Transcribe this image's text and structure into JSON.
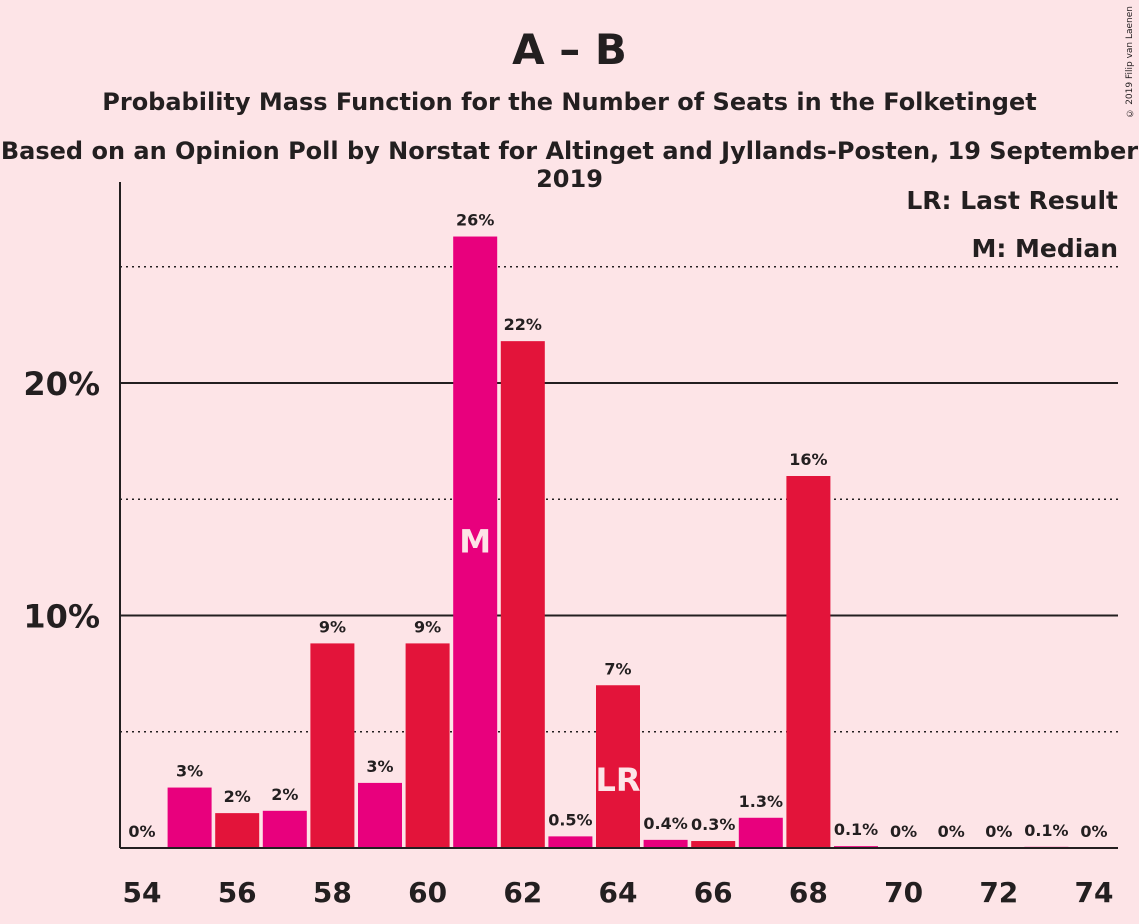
{
  "chart_data": {
    "type": "bar",
    "title": "A – B",
    "subtitle": "Probability Mass Function for the Number of Seats in the Folketinget",
    "subtitle2": "Based on an Opinion Poll by Norstat for Altinget and Jyllands-Posten, 19 September 2019",
    "copyright": "© 2019 Filip van Laenen",
    "legend": [
      "LR: Last Result",
      "M: Median"
    ],
    "legend_position": "top-right",
    "xlim": [
      54,
      74
    ],
    "ylim": [
      0,
      28
    ],
    "x_ticks": [
      54,
      56,
      58,
      60,
      62,
      64,
      66,
      68,
      70,
      72,
      74
    ],
    "y_ticks": [
      {
        "value": 10,
        "label": "10%"
      },
      {
        "value": 20,
        "label": "20%"
      }
    ],
    "dotted_gridlines": [
      5,
      15,
      25
    ],
    "colors": [
      "#e8007d",
      "#e3143a"
    ],
    "bars": [
      {
        "seats": 54,
        "value": 0,
        "label": "0%"
      },
      {
        "seats": 55,
        "value": 2.6,
        "label": "3%"
      },
      {
        "seats": 56,
        "value": 1.5,
        "label": "2%"
      },
      {
        "seats": 57,
        "value": 1.6,
        "label": "2%"
      },
      {
        "seats": 58,
        "value": 8.8,
        "label": "9%"
      },
      {
        "seats": 59,
        "value": 2.8,
        "label": "3%"
      },
      {
        "seats": 60,
        "value": 8.8,
        "label": "9%"
      },
      {
        "seats": 61,
        "value": 26.3,
        "label": "26%",
        "marker": "M"
      },
      {
        "seats": 62,
        "value": 21.8,
        "label": "22%"
      },
      {
        "seats": 63,
        "value": 0.5,
        "label": "0.5%"
      },
      {
        "seats": 64,
        "value": 7.0,
        "label": "7%",
        "marker": "LR"
      },
      {
        "seats": 65,
        "value": 0.35,
        "label": "0.4%"
      },
      {
        "seats": 66,
        "value": 0.3,
        "label": "0.3%"
      },
      {
        "seats": 67,
        "value": 1.3,
        "label": "1.3%"
      },
      {
        "seats": 68,
        "value": 16.0,
        "label": "16%"
      },
      {
        "seats": 69,
        "value": 0.08,
        "label": "0.1%"
      },
      {
        "seats": 70,
        "value": 0,
        "label": "0%"
      },
      {
        "seats": 71,
        "value": 0,
        "label": "0%"
      },
      {
        "seats": 72,
        "value": 0,
        "label": "0%"
      },
      {
        "seats": 73,
        "value": 0.05,
        "label": "0.1%"
      },
      {
        "seats": 74,
        "value": 0,
        "label": "0%"
      }
    ]
  }
}
